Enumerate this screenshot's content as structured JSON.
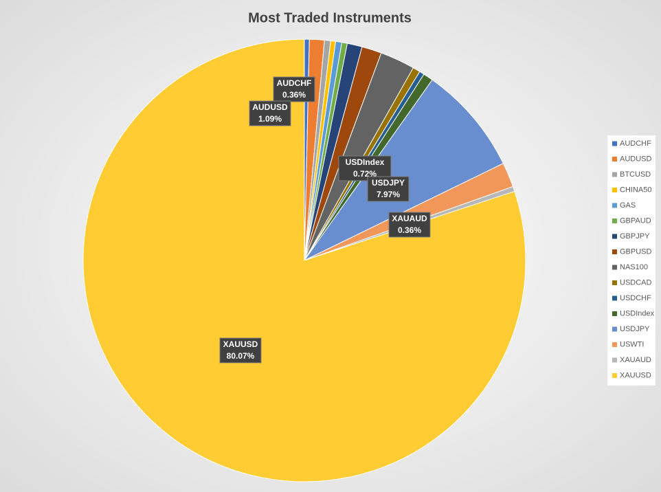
{
  "chart_data": {
    "type": "pie",
    "title": "Most Traded Instruments",
    "categories": [
      "AUDCHF",
      "AUDUSD",
      "BTCUSD",
      "CHINA50",
      "GAS",
      "GBPAUD",
      "GBPJPY",
      "GBPUSD",
      "NAS100",
      "USDCAD",
      "USDCHF",
      "USDIndex",
      "USDJPY",
      "USWTI",
      "XAUAUD",
      "XAUUSD"
    ],
    "values": [
      0.36,
      1.09,
      0.45,
      0.36,
      0.45,
      0.4,
      1.09,
      1.45,
      2.54,
      0.54,
      0.36,
      0.72,
      7.97,
      1.81,
      0.36,
      80.07
    ],
    "value_labels": [
      "0.36%",
      "1.09%",
      null,
      null,
      null,
      null,
      null,
      null,
      null,
      null,
      null,
      "0.72%",
      "7.97%",
      null,
      "0.36%",
      "80.07%"
    ],
    "colors": [
      "#4472c4",
      "#ed7d31",
      "#a5a5a5",
      "#ffc000",
      "#5b9bd5",
      "#70ad47",
      "#264478",
      "#9e480e",
      "#636363",
      "#997300",
      "#255e91",
      "#43682b",
      "#698ed0",
      "#f1975a",
      "#b7b7b7",
      "#ffcd33"
    ],
    "legend": "right"
  }
}
